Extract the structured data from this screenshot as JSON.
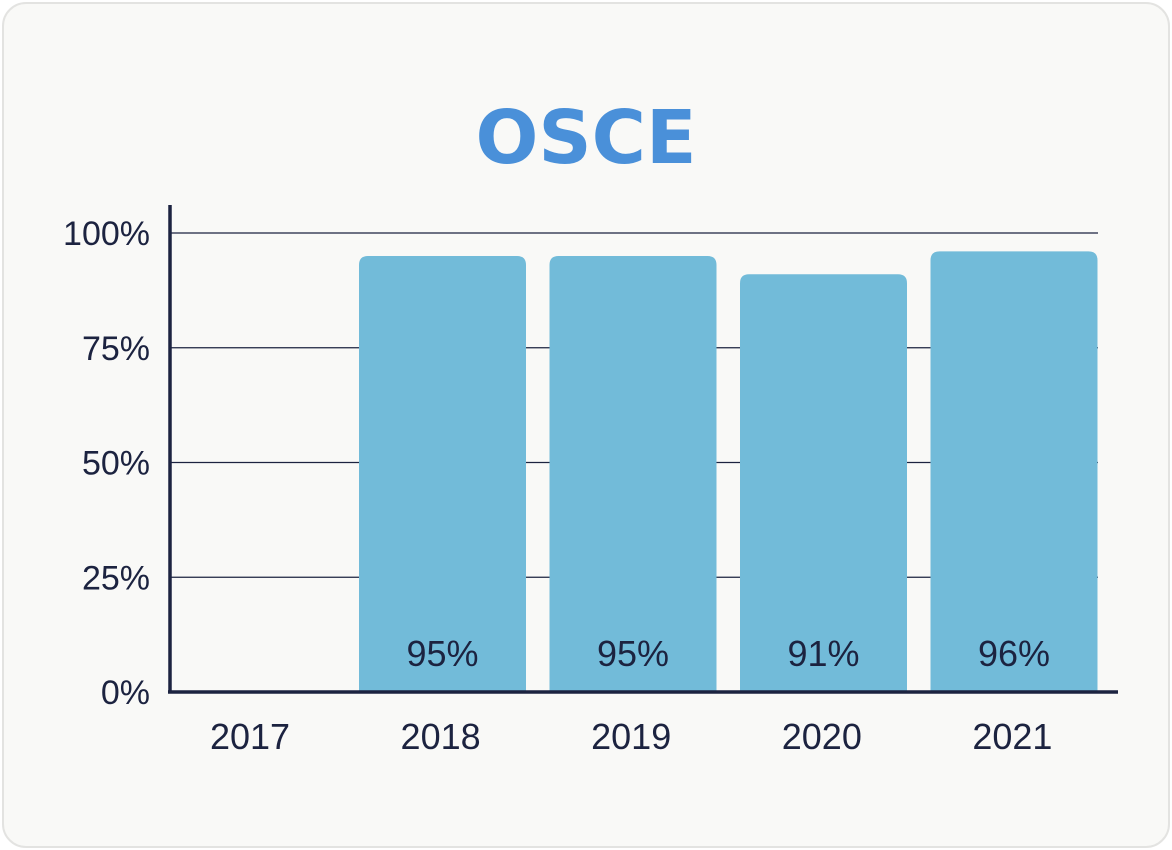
{
  "chart_data": {
    "type": "bar",
    "title": "OSCE",
    "categories": [
      "2017",
      "2018",
      "2019",
      "2020",
      "2021"
    ],
    "values": [
      null,
      95,
      95,
      91,
      96
    ],
    "data_labels": [
      "",
      "95%",
      "95%",
      "91%",
      "96%"
    ],
    "ylim": [
      0,
      100
    ],
    "yticks": [
      0,
      25,
      50,
      75,
      100
    ],
    "ytick_labels": [
      "0%",
      "25%",
      "50%",
      "75%",
      "100%"
    ],
    "xlabel": "",
    "ylabel": "",
    "grid": true,
    "colors": {
      "title": "#4a90d9",
      "bar": "#72bbd9",
      "axis": "#1c2340",
      "grid": "#1c2340",
      "text": "#1c2340"
    }
  }
}
